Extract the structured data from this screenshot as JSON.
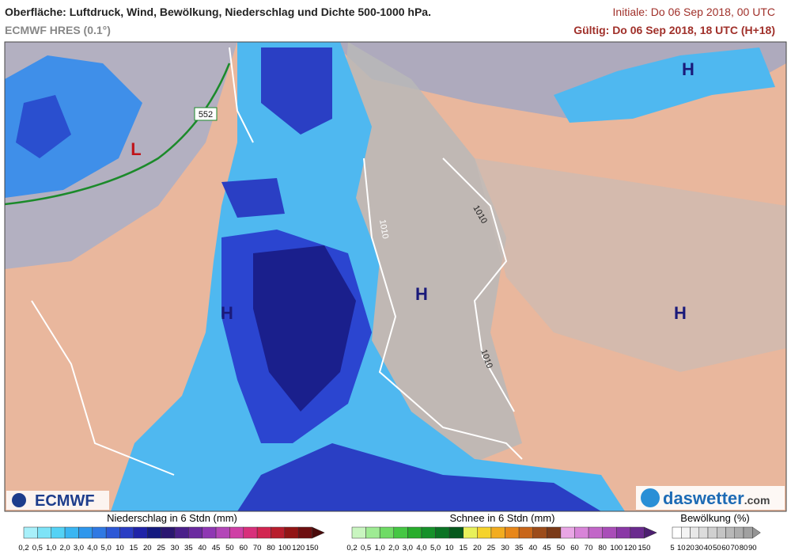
{
  "header": {
    "title": "Oberfläche: Luftdruck, Wind, Bewölkung, Niederschlag und Dichte 500-1000 hPa.",
    "model": "ECMWF HRES (0.1°)",
    "initial": "Initiale: Do 06 Sep 2018, 00 UTC",
    "valid": "Gültig: Do 06 Sep 2018, 18 UTC (H+18)"
  },
  "map": {
    "labels": [
      {
        "text": "L",
        "kind": "low"
      },
      {
        "text": "H",
        "kind": "high"
      },
      {
        "text": "H",
        "kind": "high"
      },
      {
        "text": "H",
        "kind": "high"
      },
      {
        "text": "H",
        "kind": "high"
      }
    ],
    "isolines": [
      "552",
      "1010",
      "1010",
      "1010"
    ]
  },
  "logos": {
    "left": "ECMWF",
    "right": "daswetter",
    "right_suffix": ".com"
  },
  "legends": [
    {
      "title": "Niederschlag in 6 Stdn (mm)",
      "ticks": [
        "0,2",
        "0,5",
        "1,0",
        "2,0",
        "3,0",
        "4,0",
        "5,0",
        "10",
        "15",
        "20",
        "25",
        "30",
        "35",
        "40",
        "45",
        "50",
        "60",
        "70",
        "80",
        "100",
        "120",
        "150"
      ],
      "colors": [
        "#a8f0fa",
        "#7de3f7",
        "#54d2f5",
        "#3ab6f2",
        "#2f97ec",
        "#2f79e3",
        "#2c58d6",
        "#2a3dc4",
        "#1f23a8",
        "#141a80",
        "#2a1670",
        "#4a1f8a",
        "#6b2aa0",
        "#8f37b3",
        "#b346b8",
        "#cf3fa5",
        "#d8307b",
        "#d22550",
        "#b81d2d",
        "#921515",
        "#6e0f10",
        "#4a0a0a"
      ]
    },
    {
      "title": "Schnee in 6 Stdn (mm)",
      "ticks": [
        "0,2",
        "0,5",
        "1,0",
        "2,0",
        "3,0",
        "4,0",
        "5,0",
        "10",
        "15",
        "20",
        "25",
        "30",
        "35",
        "40",
        "45",
        "50",
        "60",
        "70",
        "80",
        "100",
        "120",
        "150"
      ],
      "colors": [
        "#c9f5c0",
        "#9eeb93",
        "#6fdb65",
        "#45c743",
        "#28ad2c",
        "#16912a",
        "#0b7424",
        "#05591c",
        "#e7f05a",
        "#f5d32c",
        "#f2ac1f",
        "#e88719",
        "#c8661a",
        "#9c4c1a",
        "#7b3a18",
        "#e9a6e5",
        "#d884d8",
        "#c266c8",
        "#a94db8",
        "#8a38a6",
        "#6a2a8e",
        "#4c1f70"
      ]
    },
    {
      "title": "Bewölkung (%)",
      "ticks": [
        "5",
        "10",
        "20",
        "30",
        "40",
        "50",
        "60",
        "70",
        "80",
        "90"
      ],
      "colors": [
        "#ffffff",
        "#f4f4f4",
        "#e8e8e8",
        "#dcdcdc",
        "#d0d0d0",
        "#c4c4c4",
        "#b8b8b8",
        "#acacac",
        "#a0a0a0",
        "#949494"
      ]
    }
  ]
}
